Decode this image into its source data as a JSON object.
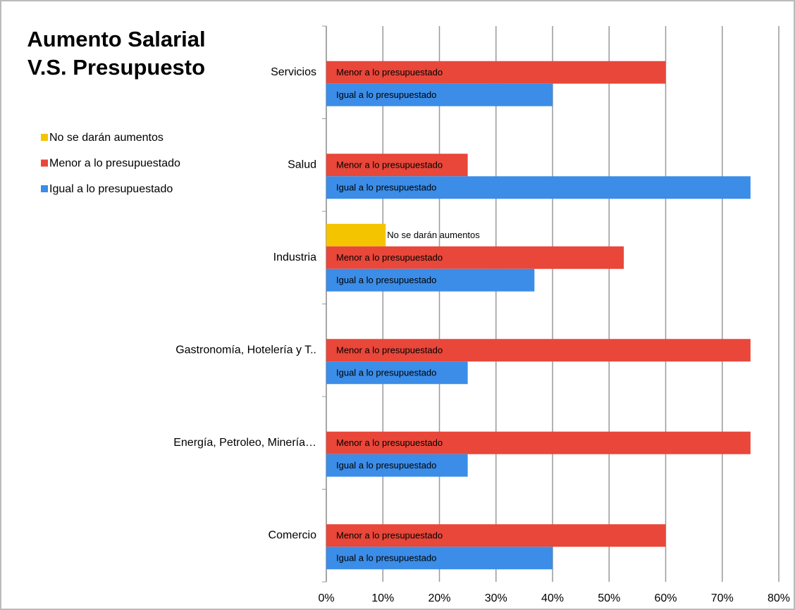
{
  "chart_data": {
    "type": "bar",
    "orientation": "horizontal",
    "title": "Aumento Salarial V.S. Presupuesto",
    "categories": [
      "Servicios",
      "Salud",
      "Industria",
      "Gastronomía, Hotelería y T..",
      "Energía, Petroleo, Minería…",
      "Comercio"
    ],
    "series": [
      {
        "name": "No se darán aumentos",
        "color": "#f5c400",
        "values": [
          null,
          null,
          10.5,
          null,
          null,
          null
        ]
      },
      {
        "name": "Menor a lo presupuestado",
        "color": "#e8473a",
        "values": [
          60,
          25,
          52.6,
          75,
          75,
          60
        ]
      },
      {
        "name": "Igual a lo presupuestado",
        "color": "#3b8de8",
        "values": [
          40,
          75,
          36.8,
          25,
          25,
          40
        ]
      }
    ],
    "xlim": [
      0,
      80
    ],
    "xticks": [
      {
        "value": 0,
        "label": "0%"
      },
      {
        "value": 10,
        "label": "10%"
      },
      {
        "value": 20,
        "label": "20%"
      },
      {
        "value": 30,
        "label": "30%"
      },
      {
        "value": 40,
        "label": "40%"
      },
      {
        "value": 50,
        "label": "50%"
      },
      {
        "value": 60,
        "label": "60%"
      },
      {
        "value": 70,
        "label": "70%"
      },
      {
        "value": 80,
        "label": "80%"
      }
    ],
    "grid": true,
    "legend": "top-left"
  }
}
